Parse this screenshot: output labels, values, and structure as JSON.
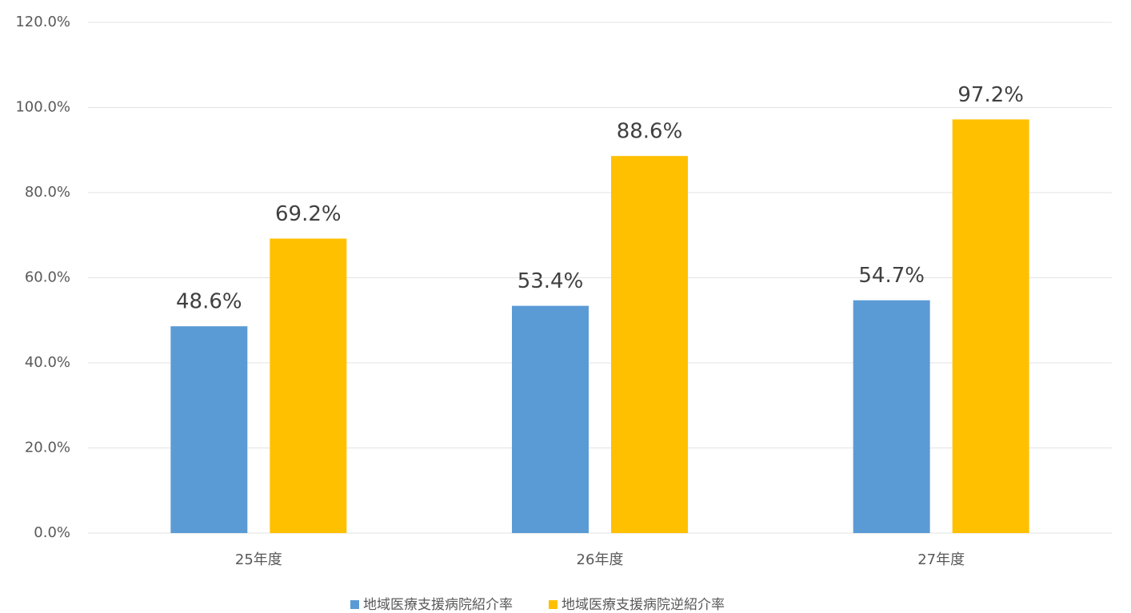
{
  "chart_data": {
    "type": "bar",
    "categories": [
      "25年度",
      "26年度",
      "27年度"
    ],
    "series": [
      {
        "name": "地域医療支援病院紹介率",
        "color": "#5b9bd5",
        "values": [
          48.6,
          53.4,
          54.7
        ],
        "value_labels": [
          "48.6%",
          "53.4%",
          "54.7%"
        ]
      },
      {
        "name": "地域医療支援病院逆紹介率",
        "color": "#ffc000",
        "values": [
          69.2,
          88.6,
          97.2
        ],
        "value_labels": [
          "69.2%",
          "88.6%",
          "97.2%"
        ]
      }
    ],
    "ylim": [
      0,
      120
    ],
    "yticks": [
      {
        "value": 0,
        "label": "0.0%"
      },
      {
        "value": 20,
        "label": "20.0%"
      },
      {
        "value": 40,
        "label": "40.0%"
      },
      {
        "value": 60,
        "label": "60.0%"
      },
      {
        "value": 80,
        "label": "80.0%"
      },
      {
        "value": 100,
        "label": "100.0%"
      },
      {
        "value": 120,
        "label": "120.0%"
      }
    ],
    "grid": true,
    "legend": "bottom"
  }
}
